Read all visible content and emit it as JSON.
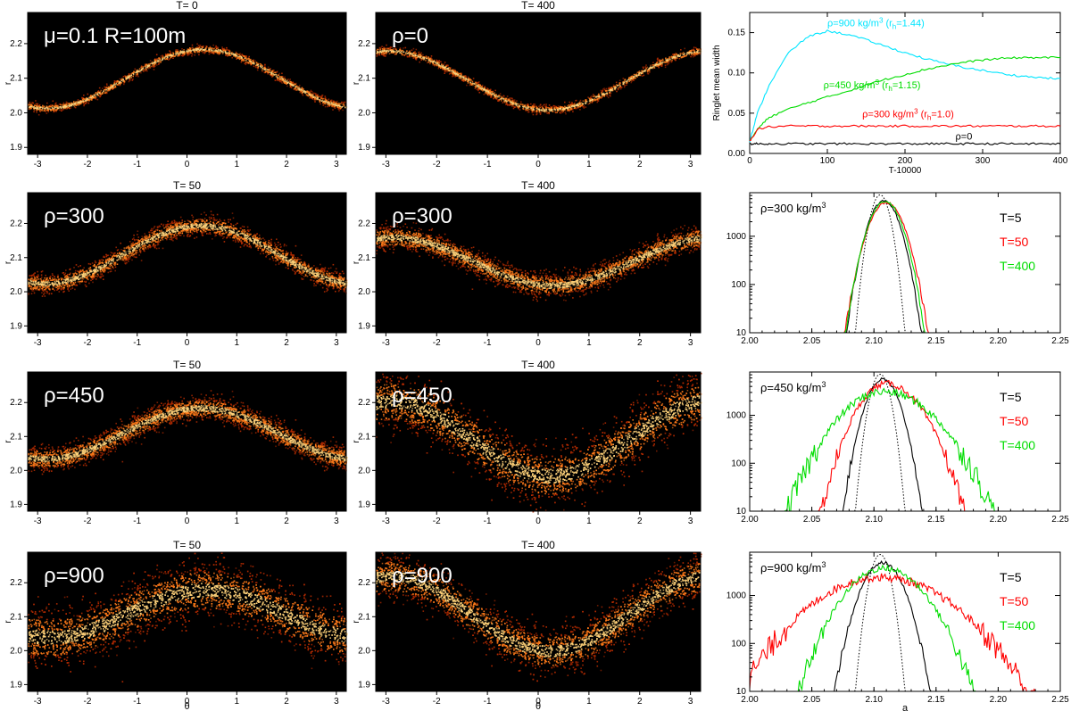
{
  "figure": {
    "colors": {
      "black": "#000000",
      "red": "#ff0000",
      "green": "#00dd00",
      "cyan": "#00e5ff",
      "particle_hot": "#ffd27a",
      "particle_mid": "#ff7a1a",
      "particle_low": "#b22a00"
    },
    "axis_labels": {
      "theta": "θ",
      "r": "r",
      "a": "a",
      "width_y": "Ringlet mean width",
      "width_x": "T-10000"
    },
    "scatter_x_ticks": [
      "-3",
      "-2",
      "-1",
      "0",
      "1",
      "2",
      "3"
    ],
    "scatter_y_ticks": [
      "1.9",
      "2.0",
      "2.1",
      "2.2"
    ],
    "hist_x_ticks": [
      "2.00",
      "2.05",
      "2.10",
      "2.15",
      "2.20",
      "2.25"
    ],
    "hist_y_ticks": [
      "10",
      "100",
      "1000"
    ]
  },
  "chart_data": [
    {
      "type": "scatter",
      "id": "s00",
      "title": "T=    0",
      "label": "μ=0.1  R=100m",
      "xlim": [
        -3.2,
        3.2
      ],
      "ylim": [
        1.88,
        2.29
      ],
      "center": 2.1,
      "amplitude": 0.085,
      "phase": -1.25,
      "width": 0.006,
      "n": 1600,
      "show_x_axis_label": false
    },
    {
      "type": "scatter",
      "id": "s01",
      "title": "T=  400",
      "label": "ρ=0",
      "xlim": [
        -3.2,
        3.2
      ],
      "ylim": [
        1.88,
        2.29
      ],
      "center": 2.095,
      "amplitude": 0.085,
      "phase": 1.75,
      "width": 0.006,
      "n": 1600,
      "show_x_axis_label": false
    },
    {
      "type": "scatter",
      "id": "s10",
      "title": "T=   50",
      "label": "ρ=300",
      "xlim": [
        -3.2,
        3.2
      ],
      "ylim": [
        1.88,
        2.29
      ],
      "center": 2.11,
      "amplitude": 0.085,
      "phase": -1.3,
      "width": 0.014,
      "n": 2600,
      "show_x_axis_label": false
    },
    {
      "type": "scatter",
      "id": "s11",
      "title": "T=  400",
      "label": "ρ=300",
      "xlim": [
        -3.2,
        3.2
      ],
      "ylim": [
        1.88,
        2.29
      ],
      "center": 2.09,
      "amplitude": 0.07,
      "phase": 1.85,
      "width": 0.017,
      "n": 3000,
      "show_x_axis_label": false
    },
    {
      "type": "scatter",
      "id": "s20",
      "title": "T=   50",
      "label": "ρ=450",
      "xlim": [
        -3.2,
        3.2
      ],
      "ylim": [
        1.88,
        2.29
      ],
      "center": 2.11,
      "amplitude": 0.075,
      "phase": -1.3,
      "width": 0.017,
      "n": 3000,
      "show_x_axis_label": false
    },
    {
      "type": "scatter",
      "id": "s21",
      "title": "T=  400",
      "label": "ρ=450",
      "xlim": [
        -3.2,
        3.2
      ],
      "ylim": [
        1.88,
        2.29
      ],
      "center": 2.095,
      "amplitude": 0.11,
      "phase": 1.8,
      "width": 0.04,
      "n": 4200,
      "show_x_axis_label": false
    },
    {
      "type": "scatter",
      "id": "s30",
      "title": "T=   50",
      "label": "ρ=900",
      "xlim": [
        -3.2,
        3.2
      ],
      "ylim": [
        1.88,
        2.29
      ],
      "center": 2.11,
      "amplitude": 0.07,
      "phase": -1.2,
      "width": 0.04,
      "n": 4200,
      "show_x_axis_label": true
    },
    {
      "type": "scatter",
      "id": "s31",
      "title": "T=  400",
      "label": "ρ=900",
      "xlim": [
        -3.2,
        3.2
      ],
      "ylim": [
        1.88,
        2.29
      ],
      "center": 2.11,
      "amplitude": 0.11,
      "phase": 1.8,
      "width": 0.032,
      "n": 4000,
      "show_x_axis_label": true
    },
    {
      "type": "line",
      "id": "width",
      "title": "",
      "xlabel": "T-10000",
      "ylabel": "Ringlet mean width",
      "xlim": [
        0,
        400
      ],
      "ylim": [
        0,
        0.175
      ],
      "x_ticks": [
        "0",
        "100",
        "200",
        "300",
        "400"
      ],
      "y_ticks": [
        "0.00",
        "0.05",
        "0.10",
        "0.15"
      ],
      "x": [
        0,
        10,
        25,
        50,
        75,
        100,
        125,
        150,
        175,
        200,
        225,
        250,
        275,
        300,
        325,
        350,
        375,
        400
      ],
      "series": [
        {
          "name": "ρ=900",
          "color": "#00e5ff",
          "values": [
            0.015,
            0.05,
            0.085,
            0.125,
            0.145,
            0.152,
            0.148,
            0.141,
            0.133,
            0.125,
            0.118,
            0.112,
            0.107,
            0.103,
            0.099,
            0.096,
            0.094,
            0.093
          ]
        },
        {
          "name": "ρ=450",
          "color": "#00dd00",
          "values": [
            0.015,
            0.03,
            0.045,
            0.055,
            0.063,
            0.07,
            0.077,
            0.085,
            0.092,
            0.098,
            0.104,
            0.109,
            0.113,
            0.116,
            0.118,
            0.119,
            0.119,
            0.119
          ]
        },
        {
          "name": "ρ=300",
          "color": "#ff0000",
          "values": [
            0.015,
            0.03,
            0.033,
            0.034,
            0.034,
            0.034,
            0.034,
            0.034,
            0.034,
            0.034,
            0.034,
            0.034,
            0.034,
            0.034,
            0.034,
            0.034,
            0.034,
            0.034
          ]
        },
        {
          "name": "ρ=0",
          "color": "#000000",
          "values": [
            0.012,
            0.012,
            0.012,
            0.012,
            0.012,
            0.012,
            0.012,
            0.012,
            0.012,
            0.012,
            0.012,
            0.012,
            0.012,
            0.012,
            0.012,
            0.012,
            0.012,
            0.012
          ]
        }
      ],
      "annotations": [
        {
          "text": "ρ=900 kg/m",
          "sup": "3",
          "tail": " (r",
          "sub": "h",
          "end": "=1.44)",
          "color": "#00e5ff",
          "x": 100,
          "y": 0.158
        },
        {
          "text": "ρ=450 kg/m",
          "sup": "3",
          "tail": " (r",
          "sub": "h",
          "end": "=1.15)",
          "color": "#00dd00",
          "x": 95,
          "y": 0.081
        },
        {
          "text": "ρ=300 kg/m",
          "sup": "3",
          "tail": " (r",
          "sub": "h",
          "end": "=1.0)",
          "color": "#ff0000",
          "x": 145,
          "y": 0.045
        },
        {
          "text": "ρ=0",
          "color": "#000000",
          "x": 265,
          "y": 0.017
        }
      ]
    },
    {
      "type": "histogram",
      "id": "h1",
      "label": "ρ=300  kg/m",
      "label_sup": "3",
      "xlim": [
        2.0,
        2.25
      ],
      "ylim_log": [
        10,
        8000
      ],
      "show_x_axis_label": false,
      "series": [
        {
          "name": "T=5",
          "color": "#000000",
          "center": 2.108,
          "sigma_l": 0.0085,
          "sigma_r": 0.0085,
          "peak": 5400,
          "noise": 0.05
        },
        {
          "name": "T=50",
          "color": "#ff0000",
          "center": 2.11,
          "sigma_l": 0.0095,
          "sigma_r": 0.0095,
          "peak": 5000,
          "noise": 0.05
        },
        {
          "name": "T=400",
          "color": "#00dd00",
          "center": 2.109,
          "sigma_l": 0.009,
          "sigma_r": 0.009,
          "peak": 5300,
          "noise": 0.05
        }
      ],
      "initial": {
        "name": "initial",
        "center": 2.105,
        "sigma": 0.0055,
        "peak": 7200
      },
      "legend": [
        "T=5",
        "T=50",
        "T=400"
      ]
    },
    {
      "type": "histogram",
      "id": "h2",
      "label": "ρ=450 kg/m",
      "label_sup": "3",
      "xlim": [
        2.0,
        2.25
      ],
      "ylim_log": [
        10,
        8000
      ],
      "show_x_axis_label": false,
      "series": [
        {
          "name": "T=5",
          "color": "#000000",
          "center": 2.107,
          "sigma_l": 0.009,
          "sigma_r": 0.009,
          "peak": 5600,
          "noise": 0.08
        },
        {
          "name": "T=50",
          "color": "#ff0000",
          "center": 2.11,
          "sigma_l": 0.015,
          "sigma_r": 0.018,
          "peak": 4600,
          "noise": 0.15
        },
        {
          "name": "T=400",
          "color": "#00dd00",
          "center": 2.108,
          "sigma_l": 0.023,
          "sigma_r": 0.026,
          "peak": 3100,
          "noise": 0.2
        }
      ],
      "initial": {
        "name": "initial",
        "center": 2.105,
        "sigma": 0.0055,
        "peak": 7200
      },
      "legend": [
        "T=5",
        "T=50",
        "T=400"
      ]
    },
    {
      "type": "histogram",
      "id": "h3",
      "label": "ρ=900 kg/m",
      "label_sup": "3",
      "xlim": [
        2.0,
        2.25
      ],
      "ylim_log": [
        10,
        8000
      ],
      "show_x_axis_label": true,
      "series": [
        {
          "name": "T=5",
          "color": "#000000",
          "center": 2.107,
          "sigma_l": 0.011,
          "sigma_r": 0.011,
          "peak": 4800,
          "noise": 0.08
        },
        {
          "name": "T=50",
          "color": "#ff0000",
          "center": 2.105,
          "sigma_l": 0.034,
          "sigma_r": 0.036,
          "peak": 2400,
          "noise": 0.2
        },
        {
          "name": "T=400",
          "color": "#00dd00",
          "center": 2.108,
          "sigma_l": 0.02,
          "sigma_r": 0.021,
          "peak": 3700,
          "noise": 0.15
        }
      ],
      "initial": {
        "name": "initial",
        "center": 2.105,
        "sigma": 0.0055,
        "peak": 7200
      },
      "legend": [
        "T=5",
        "T=50",
        "T=400"
      ]
    }
  ]
}
